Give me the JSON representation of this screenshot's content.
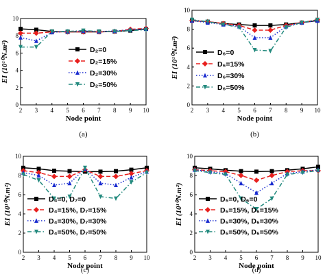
{
  "chart_data": [
    {
      "type": "line",
      "caption": "(a)",
      "xlabel": "Node point",
      "ylabel": "EI (10¹⁰N.m²)",
      "xlim": [
        2,
        10
      ],
      "ylim": [
        0,
        10
      ],
      "xticks": [
        "2",
        "3",
        "4",
        "5",
        "6",
        "7",
        "8",
        "9",
        "10"
      ],
      "yticks": [
        "0",
        "2",
        "4",
        "6",
        "8",
        "10"
      ],
      "x": [
        2,
        3,
        4,
        5,
        6,
        7,
        8,
        9,
        10
      ],
      "legend_placement": "center-left",
      "series": [
        {
          "name": "D₂=0",
          "color": "#000000",
          "dash": "",
          "marker": "square",
          "values": [
            8.8,
            8.7,
            8.5,
            8.45,
            8.45,
            8.45,
            8.5,
            8.6,
            8.8
          ]
        },
        {
          "name": "D₂=15%",
          "color": "#e8201e",
          "dash": "6,3",
          "marker": "diamond",
          "values": [
            8.3,
            8.3,
            8.45,
            8.45,
            8.45,
            8.45,
            8.5,
            8.75,
            8.85
          ]
        },
        {
          "name": "D₂=30%",
          "color": "#1a2ccf",
          "dash": "1.5,2.5",
          "marker": "triangle",
          "values": [
            7.8,
            7.4,
            8.4,
            8.5,
            8.55,
            8.5,
            8.55,
            8.7,
            8.8
          ]
        },
        {
          "name": "D₂=50%",
          "color": "#238a7e",
          "dash": "6,3,1.5,3",
          "marker": "tridown",
          "values": [
            6.7,
            6.7,
            8.5,
            8.5,
            8.6,
            8.5,
            8.5,
            8.6,
            8.7
          ]
        }
      ]
    },
    {
      "type": "line",
      "caption": "(b)",
      "xlabel": "Node point",
      "ylabel": "EI (10¹⁰N.m²)",
      "xlim": [
        2,
        10
      ],
      "ylim": [
        0,
        10
      ],
      "xticks": [
        "2",
        "3",
        "4",
        "5",
        "6",
        "7",
        "8",
        "9",
        "10"
      ],
      "yticks": [
        "0",
        "2",
        "4",
        "6",
        "8",
        "10"
      ],
      "x": [
        2,
        3,
        4,
        5,
        6,
        7,
        8,
        9,
        10
      ],
      "legend_placement": "center-left",
      "series": [
        {
          "name": "D₆=0",
          "color": "#000000",
          "dash": "",
          "marker": "square",
          "values": [
            8.9,
            8.8,
            8.6,
            8.5,
            8.4,
            8.4,
            8.5,
            8.7,
            8.9
          ]
        },
        {
          "name": "D₆=15%",
          "color": "#e8201e",
          "dash": "6,3",
          "marker": "diamond",
          "values": [
            8.9,
            8.8,
            8.6,
            8.4,
            7.9,
            7.9,
            8.4,
            8.7,
            9.0
          ]
        },
        {
          "name": "D₆=30%",
          "color": "#1a2ccf",
          "dash": "1.5,2.5",
          "marker": "triangle",
          "values": [
            8.9,
            8.7,
            8.5,
            8.3,
            7.1,
            7.1,
            8.3,
            8.7,
            8.9
          ]
        },
        {
          "name": "D₆=50%",
          "color": "#238a7e",
          "dash": "6,3,1.5,3",
          "marker": "tridown",
          "values": [
            9.0,
            8.8,
            8.5,
            8.2,
            5.8,
            5.7,
            8.2,
            8.7,
            9.0
          ]
        }
      ]
    },
    {
      "type": "line",
      "caption": "(c)",
      "xlabel": "Node point",
      "ylabel": "EI (10¹⁰N.m²)",
      "xlim": [
        2,
        10
      ],
      "ylim": [
        0,
        10
      ],
      "xticks": [
        "2",
        "3",
        "4",
        "5",
        "6",
        "7",
        "8",
        "9",
        "10"
      ],
      "yticks": [
        "0",
        "2",
        "4",
        "6",
        "8",
        "10"
      ],
      "x": [
        2,
        3,
        4,
        5,
        6,
        7,
        8,
        9,
        10
      ],
      "legend_placement": "bottom-left",
      "series": [
        {
          "name": "D₄=0, D₇=0",
          "color": "#000000",
          "dash": "",
          "marker": "square",
          "values": [
            8.8,
            8.7,
            8.5,
            8.45,
            8.4,
            8.4,
            8.45,
            8.6,
            8.8
          ]
        },
        {
          "name": "D₄=15%, D₇=15%",
          "color": "#e8201e",
          "dash": "6,3",
          "marker": "diamond",
          "values": [
            8.5,
            8.3,
            7.9,
            7.9,
            8.6,
            7.9,
            7.9,
            8.2,
            8.5
          ]
        },
        {
          "name": "D₄=30%, D₇=30%",
          "color": "#1a2ccf",
          "dash": "1.5,2.5",
          "marker": "triangle",
          "values": [
            8.3,
            8.0,
            7.0,
            7.2,
            8.7,
            7.2,
            7.0,
            7.8,
            8.4
          ]
        },
        {
          "name": "D₄=50%, D₇=50%",
          "color": "#238a7e",
          "dash": "6,3,1.5,3",
          "marker": "tridown",
          "values": [
            8.1,
            7.5,
            5.6,
            5.8,
            8.8,
            5.8,
            5.6,
            7.3,
            8.3
          ]
        }
      ]
    },
    {
      "type": "line",
      "caption": "(d)",
      "xlabel": "Node point",
      "ylabel": "EI (10¹⁰N.m²)",
      "xlim": [
        2,
        10
      ],
      "ylim": [
        0,
        10
      ],
      "xticks": [
        "2",
        "3",
        "4",
        "5",
        "6",
        "7",
        "8",
        "9",
        "10"
      ],
      "yticks": [
        "0",
        "2",
        "4",
        "6",
        "8",
        "10"
      ],
      "x": [
        2,
        3,
        4,
        5,
        6,
        7,
        8,
        9,
        10
      ],
      "legend_placement": "bottom-left",
      "series": [
        {
          "name": "D₅=0, D₆=0",
          "color": "#000000",
          "dash": "",
          "marker": "square",
          "values": [
            8.8,
            8.7,
            8.55,
            8.45,
            8.4,
            8.45,
            8.55,
            8.7,
            8.9
          ]
        },
        {
          "name": "D₅=15%, D₆=15%",
          "color": "#e8201e",
          "dash": "6,3",
          "marker": "diamond",
          "values": [
            8.6,
            8.5,
            8.4,
            8.0,
            7.5,
            8.0,
            8.4,
            8.5,
            8.5
          ]
        },
        {
          "name": "D₅=30%, D₆=30%",
          "color": "#1a2ccf",
          "dash": "1.5,2.5",
          "marker": "triangle",
          "values": [
            8.6,
            8.4,
            8.2,
            7.2,
            6.2,
            7.2,
            8.2,
            8.4,
            8.6
          ]
        },
        {
          "name": "D₅=50%, D₆=50%",
          "color": "#238a7e",
          "dash": "6,3,1.5,3",
          "marker": "tridown",
          "values": [
            8.5,
            8.3,
            8.1,
            5.6,
            4.5,
            5.6,
            8.1,
            8.3,
            8.5
          ]
        }
      ]
    }
  ]
}
